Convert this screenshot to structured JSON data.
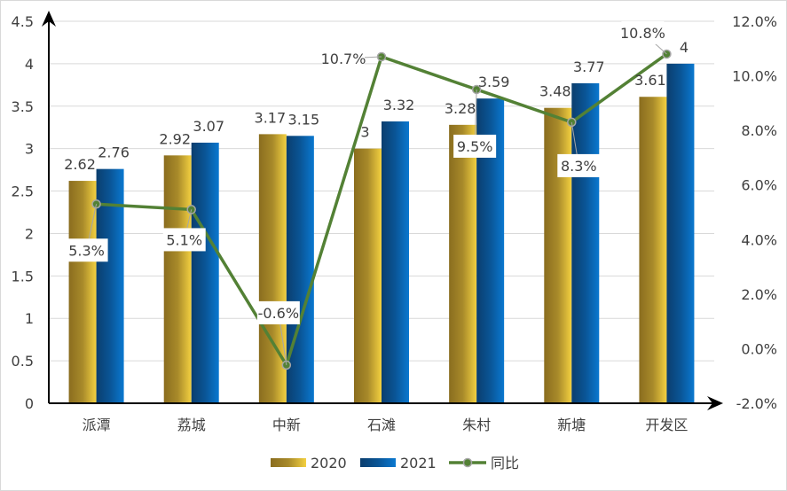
{
  "chart_data": {
    "type": "bar+line",
    "title": "",
    "categories": [
      "派潭",
      "荔城",
      "中新",
      "石滩",
      "朱村",
      "新塘",
      "开发区"
    ],
    "series": [
      {
        "name": "2020",
        "type": "bar",
        "axis": "left",
        "values": [
          2.62,
          2.92,
          3.17,
          3,
          3.28,
          3.48,
          3.61
        ],
        "labels": [
          "2.62",
          "2.92",
          "3.17",
          "3",
          "3.28",
          "3.48",
          "3.61"
        ],
        "color": "#c9a227"
      },
      {
        "name": "2021",
        "type": "bar",
        "axis": "left",
        "values": [
          2.76,
          3.07,
          3.15,
          3.32,
          3.59,
          3.77,
          4
        ],
        "labels": [
          "2.76",
          "3.07",
          "3.15",
          "3.32",
          "3.59",
          "3.77",
          "4"
        ],
        "color": "#0a5ea8"
      },
      {
        "name": "同比",
        "type": "line",
        "axis": "right",
        "values": [
          5.3,
          5.1,
          -0.6,
          10.7,
          9.5,
          8.3,
          10.8
        ],
        "labels": [
          "5.3%",
          "5.1%",
          "-0.6%",
          "10.7%",
          "9.5%",
          "8.3%",
          "10.8%"
        ],
        "color": "#538135"
      }
    ],
    "y_left": {
      "min": 0,
      "max": 4.5,
      "ticks": [
        "0",
        "0.5",
        "1",
        "1.5",
        "2",
        "2.5",
        "3",
        "3.5",
        "4",
        "4.5"
      ]
    },
    "y_right": {
      "min": -2,
      "max": 12,
      "ticks": [
        "-2.0%",
        "0.0%",
        "2.0%",
        "4.0%",
        "6.0%",
        "8.0%",
        "10.0%",
        "12.0%"
      ]
    },
    "grid": true,
    "legend": {
      "position": "bottom",
      "items": [
        "2020",
        "2021",
        "同比"
      ]
    }
  }
}
